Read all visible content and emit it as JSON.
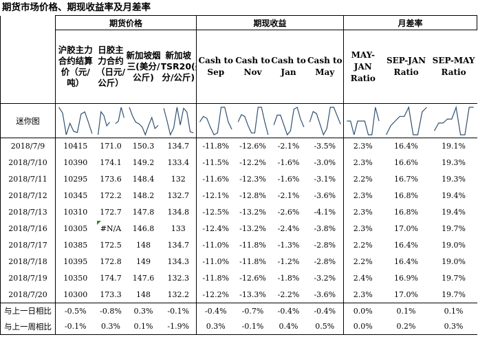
{
  "title": "期货市场价格、期现收益率及月差率",
  "groups": {
    "futures": "期货价格",
    "spot": "期现收益",
    "spread": "月差率"
  },
  "columns": [
    "沪胶主力合约结算价（元/吨）",
    "日胶主力合约（日元/公斤）",
    "新加坡烟三(美分/公斤)",
    "新加坡TSR20(美分/公斤)",
    "Cash to Sep",
    "Cash to Nov",
    "Cash to Jan",
    "Cash to May",
    "MAY-JAN Ratio",
    "SEP-JAN Ratio",
    "SEP-MAY Ratio"
  ],
  "sparkline_label": "迷你图",
  "sparkline_color": "#2f4f6f",
  "na_marker_color": "#2e8b2e",
  "rows": [
    {
      "date": "2018/7/9",
      "values": [
        "10415",
        "171.0",
        "150.3",
        "134.7",
        "-11.8%",
        "-12.6%",
        "-2.1%",
        "-3.5%",
        "2.3%",
        "16.4%",
        "19.1%"
      ]
    },
    {
      "date": "2018/7/10",
      "values": [
        "10390",
        "174.1",
        "149.2",
        "133.4",
        "-11.5%",
        "-12.2%",
        "-1.6%",
        "-3.0%",
        "2.3%",
        "16.6%",
        "19.3%"
      ]
    },
    {
      "date": "2018/7/11",
      "values": [
        "10295",
        "173.6",
        "148.4",
        "132",
        "-11.6%",
        "-12.3%",
        "-1.6%",
        "-3.1%",
        "2.2%",
        "16.7%",
        "19.3%"
      ]
    },
    {
      "date": "2018/7/12",
      "values": [
        "10345",
        "172.2",
        "148.2",
        "132.7",
        "-12.1%",
        "-12.8%",
        "-2.1%",
        "-3.6%",
        "2.3%",
        "16.8%",
        "19.4%"
      ]
    },
    {
      "date": "2018/7/13",
      "values": [
        "10310",
        "172.7",
        "147.8",
        "134.8",
        "-12.5%",
        "-13.2%",
        "-2.6%",
        "-4.1%",
        "2.3%",
        "16.8%",
        "19.4%"
      ]
    },
    {
      "date": "2018/7/16",
      "values": [
        "10305",
        "#N/A",
        "146.8",
        "133",
        "-12.4%",
        "-13.2%",
        "-2.4%",
        "-3.8%",
        "2.3%",
        "17.0%",
        "19.7%"
      ]
    },
    {
      "date": "2018/7/17",
      "values": [
        "10385",
        "172.5",
        "148",
        "134.7",
        "-11.0%",
        "-11.8%",
        "-1.3%",
        "-2.8%",
        "2.2%",
        "16.4%",
        "19.0%"
      ]
    },
    {
      "date": "2018/7/18",
      "values": [
        "10395",
        "172.8",
        "149",
        "134.3",
        "-11.0%",
        "-11.8%",
        "-1.2%",
        "-2.8%",
        "2.2%",
        "16.4%",
        "19.0%"
      ]
    },
    {
      "date": "2018/7/19",
      "values": [
        "10350",
        "174.7",
        "147.6",
        "132.3",
        "-11.8%",
        "-12.6%",
        "-1.8%",
        "-3.2%",
        "2.4%",
        "16.9%",
        "19.7%"
      ]
    },
    {
      "date": "2018/7/20",
      "values": [
        "10300",
        "173.3",
        "148",
        "132.2",
        "-12.2%",
        "-13.3%",
        "-2.2%",
        "-3.6%",
        "2.3%",
        "17.0%",
        "19.7%"
      ]
    }
  ],
  "summary": [
    {
      "label": "与上一日相比",
      "values": [
        "-0.5%",
        "-0.8%",
        "0.3%",
        "-0.1%",
        "-0.4%",
        "-0.7%",
        "-0.4%",
        "-0.4%",
        "0.0%",
        "0.1%",
        "0.1%"
      ]
    },
    {
      "label": "与上一周相比",
      "values": [
        "-0.1%",
        "0.3%",
        "0.1%",
        "-1.9%",
        "0.3%",
        "-0.1%",
        "0.4%",
        "0.5%",
        "0.0%",
        "0.2%",
        "0.3%"
      ]
    }
  ]
}
